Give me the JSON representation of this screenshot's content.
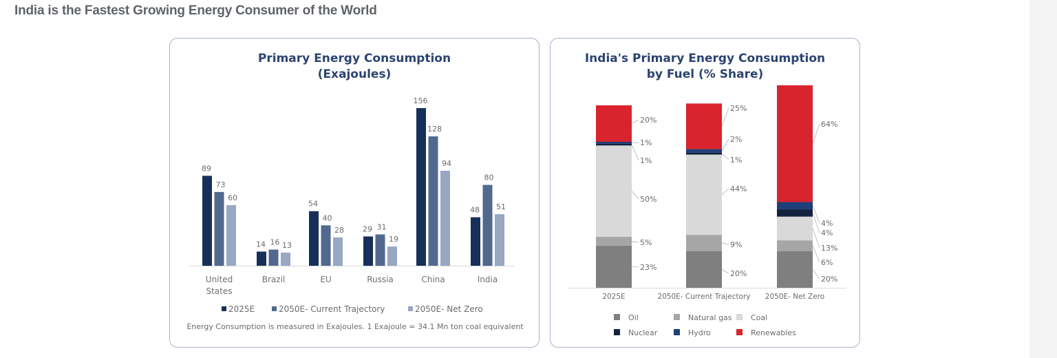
{
  "page": {
    "heading": "India is the Fastest Growing Energy Consumer of the World"
  },
  "colors": {
    "series_2025E": "#17305a",
    "series_2050_current": "#51698f",
    "series_2050_netzero": "#98a7c2",
    "oil": "#7f7f7f",
    "natural_gas": "#a6a6a6",
    "coal": "#d9d9d9",
    "nuclear": "#13223f",
    "hydro": "#1f3f78",
    "renewables": "#d9232d",
    "title": "#2c4470",
    "card_border": "#a6b2cc"
  },
  "chart_data": [
    {
      "type": "bar",
      "title": "Primary Energy Consumption (Exajoules)",
      "title_lines": [
        "Primary Energy Consumption",
        "(Exajoules)"
      ],
      "categories": [
        "United States",
        "Brazil",
        "EU",
        "Russia",
        "China",
        "India"
      ],
      "category_lines": [
        [
          "United",
          "States"
        ],
        [
          "Brazil"
        ],
        [
          "EU"
        ],
        [
          "Russia"
        ],
        [
          "China"
        ],
        [
          "India"
        ]
      ],
      "series": [
        {
          "name": "2025E",
          "values": [
            89,
            14,
            54,
            29,
            156,
            48
          ]
        },
        {
          "name": "2050E- Current Trajectory",
          "values": [
            73,
            16,
            40,
            31,
            128,
            80
          ]
        },
        {
          "name": "2050E- Net Zero",
          "values": [
            60,
            13,
            28,
            19,
            94,
            51
          ]
        }
      ],
      "xlabel": "",
      "ylabel": "",
      "ylim": [
        0,
        160
      ],
      "grid": false,
      "legend": "bottom",
      "footnote": "Energy Consumption is measured in Exajoules. 1 Exajoule = 34.1 Mn ton coal equivalent"
    },
    {
      "type": "bar",
      "stacked": true,
      "title": "India's Primary Energy Consumption by Fuel (% Share)",
      "title_lines": [
        "India's Primary Energy Consumption",
        "by Fuel (% Share)"
      ],
      "categories": [
        "2025E",
        "2050E- Current Trajectory",
        "2050E- Net Zero"
      ],
      "series": [
        {
          "name": "Oil",
          "key": "oil",
          "values": [
            23,
            20,
            20
          ]
        },
        {
          "name": "Natural gas",
          "key": "natural_gas",
          "values": [
            5,
            9,
            6
          ]
        },
        {
          "name": "Coal",
          "key": "coal",
          "values": [
            50,
            44,
            13
          ]
        },
        {
          "name": "Nuclear",
          "key": "nuclear",
          "values": [
            1,
            1,
            4
          ]
        },
        {
          "name": "Hydro",
          "key": "hydro",
          "values": [
            1,
            2,
            4
          ]
        },
        {
          "name": "Renewables",
          "key": "renewables",
          "values": [
            20,
            25,
            64
          ]
        }
      ],
      "ylim": [
        0,
        100
      ],
      "unit": "%",
      "grid": false,
      "legend": "bottom",
      "legend_rows": [
        [
          "Oil",
          "Natural gas",
          "Coal"
        ],
        [
          "Nuclear",
          "Hydro",
          "Renewables"
        ]
      ]
    }
  ]
}
